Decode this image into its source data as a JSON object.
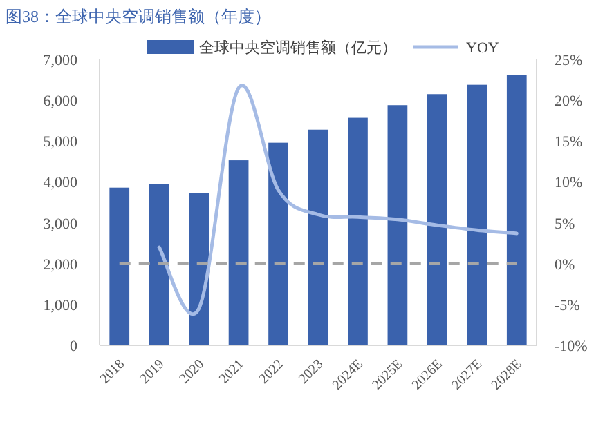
{
  "chart_data": {
    "type": "bar",
    "title": "图38：全球中央空调销售额（年度）",
    "categories": [
      "2018",
      "2019",
      "2020",
      "2021",
      "2022",
      "2023",
      "2024E",
      "2025E",
      "2026E",
      "2027E",
      "2028E"
    ],
    "series": [
      {
        "name": "全球中央空调销售额（亿元）",
        "color": "#3a62ad",
        "values": [
          3860,
          3940,
          3730,
          4530,
          4960,
          5280,
          5570,
          5880,
          6150,
          6380,
          6620
        ]
      },
      {
        "name": "YOY",
        "type": "line",
        "axis": "y2",
        "color": "#a5bbe5",
        "values": [
          null,
          2,
          -5.5,
          21.5,
          9,
          6,
          5.7,
          5.4,
          4.7,
          4.1,
          3.7
        ]
      }
    ],
    "ylim": [
      0,
      7000
    ],
    "yticks": [
      {
        "value": 0,
        "label": "0"
      },
      {
        "value": 1000,
        "label": "1,000"
      },
      {
        "value": 2000,
        "label": "2,000"
      },
      {
        "value": 3000,
        "label": "3,000"
      },
      {
        "value": 4000,
        "label": "4,000"
      },
      {
        "value": 5000,
        "label": "5,000"
      },
      {
        "value": 6000,
        "label": "6,000"
      },
      {
        "value": 7000,
        "label": "7,000"
      }
    ],
    "y2lim": [
      -10,
      25
    ],
    "y2ticks": [
      {
        "value": -10,
        "label": "-10%"
      },
      {
        "value": -5,
        "label": "-5%"
      },
      {
        "value": 0,
        "label": "0%"
      },
      {
        "value": 5,
        "label": "5%"
      },
      {
        "value": 10,
        "label": "10%"
      },
      {
        "value": 15,
        "label": "15%"
      },
      {
        "value": 20,
        "label": "20%"
      },
      {
        "value": 25,
        "label": "25%"
      }
    ],
    "ref_lines": [
      {
        "axis": "y2",
        "value": 0,
        "color": "#a6a6a6",
        "line_style": "dashed"
      }
    ],
    "legend": "top"
  }
}
